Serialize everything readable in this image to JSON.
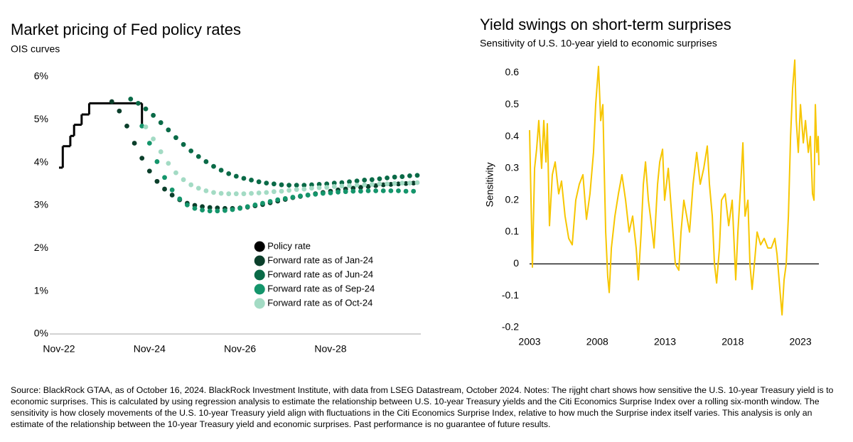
{
  "chart_data": [
    {
      "type": "line",
      "title": "Market pricing of Fed policy rates",
      "subtitle": "OIS curves",
      "xlim": [
        "2022-11",
        "2030-10"
      ],
      "xticks": [
        {
          "value": "2022-11",
          "label": "Nov-22"
        },
        {
          "value": "2024-11",
          "label": "Nov-24"
        },
        {
          "value": "2026-11",
          "label": "Nov-26"
        },
        {
          "value": "2028-11",
          "label": "Nov-28"
        }
      ],
      "ylim": [
        0,
        6
      ],
      "yticks": [
        {
          "value": 0,
          "label": "0%"
        },
        {
          "value": 1,
          "label": "1%"
        },
        {
          "value": 2,
          "label": "2%"
        },
        {
          "value": 3,
          "label": "3%"
        },
        {
          "value": 4,
          "label": "4%"
        },
        {
          "value": 5,
          "label": "5%"
        },
        {
          "value": 6,
          "label": "6%"
        }
      ],
      "legend": "lower right",
      "series": [
        {
          "name": "Policy rate",
          "color": "#000000",
          "style": "step",
          "x": [
            "2022-11",
            "2022-12",
            "2023-02",
            "2023-03",
            "2023-05",
            "2023-07",
            "2024-09"
          ],
          "values": [
            3.88,
            4.38,
            4.62,
            4.88,
            5.12,
            5.38,
            4.88
          ]
        },
        {
          "name": "Forward rate as of Jan-24",
          "color": "#0b3f2b",
          "style": "dots",
          "x": [
            "2024-01",
            "2024-03",
            "2024-05",
            "2024-07",
            "2024-09",
            "2024-11",
            "2025-01",
            "2025-03",
            "2025-05",
            "2025-07",
            "2025-09",
            "2025-11",
            "2026-01",
            "2026-03",
            "2026-05",
            "2026-07",
            "2026-09",
            "2026-11",
            "2027-01",
            "2027-03",
            "2027-05",
            "2027-07",
            "2027-09",
            "2027-11",
            "2028-01",
            "2028-03",
            "2028-05",
            "2028-07",
            "2028-09",
            "2028-11",
            "2029-01",
            "2029-03",
            "2029-05",
            "2029-07",
            "2029-09",
            "2029-11",
            "2030-01",
            "2030-03",
            "2030-05",
            "2030-07",
            "2030-09"
          ],
          "values": [
            5.42,
            5.2,
            4.85,
            4.45,
            4.1,
            3.8,
            3.56,
            3.38,
            3.24,
            3.13,
            3.05,
            3.0,
            2.97,
            2.95,
            2.94,
            2.93,
            2.93,
            2.94,
            2.96,
            2.99,
            3.02,
            3.06,
            3.1,
            3.14,
            3.18,
            3.21,
            3.24,
            3.27,
            3.3,
            3.33,
            3.36,
            3.38,
            3.4,
            3.42,
            3.44,
            3.46,
            3.48,
            3.49,
            3.5,
            3.51,
            3.52
          ]
        },
        {
          "name": "Forward rate as of Jun-24",
          "color": "#0a6a47",
          "style": "dots",
          "x": [
            "2024-06",
            "2024-08",
            "2024-10",
            "2024-12",
            "2025-02",
            "2025-04",
            "2025-06",
            "2025-08",
            "2025-10",
            "2025-12",
            "2026-02",
            "2026-04",
            "2026-06",
            "2026-08",
            "2026-10",
            "2026-12",
            "2027-02",
            "2027-04",
            "2027-06",
            "2027-08",
            "2027-10",
            "2027-12",
            "2028-02",
            "2028-04",
            "2028-06",
            "2028-08",
            "2028-10",
            "2028-12",
            "2029-02",
            "2029-04",
            "2029-06",
            "2029-08",
            "2029-10",
            "2029-12",
            "2030-02",
            "2030-04",
            "2030-06",
            "2030-08",
            "2030-10"
          ],
          "values": [
            5.48,
            5.38,
            5.25,
            5.1,
            4.93,
            4.76,
            4.58,
            4.42,
            4.27,
            4.14,
            4.02,
            3.91,
            3.82,
            3.74,
            3.68,
            3.63,
            3.59,
            3.55,
            3.52,
            3.5,
            3.48,
            3.47,
            3.47,
            3.47,
            3.48,
            3.49,
            3.5,
            3.52,
            3.53,
            3.55,
            3.57,
            3.59,
            3.6,
            3.62,
            3.64,
            3.66,
            3.67,
            3.69,
            3.7
          ]
        },
        {
          "name": "Forward rate as of Sep-24",
          "color": "#14956b",
          "style": "dots",
          "x": [
            "2024-09",
            "2024-11",
            "2025-01",
            "2025-03",
            "2025-05",
            "2025-07",
            "2025-09",
            "2025-11",
            "2026-01",
            "2026-03",
            "2026-05",
            "2026-07",
            "2026-09",
            "2026-11",
            "2027-01",
            "2027-03",
            "2027-05",
            "2027-07",
            "2027-09",
            "2027-11",
            "2028-01",
            "2028-03",
            "2028-05",
            "2028-07",
            "2028-09",
            "2028-11",
            "2029-01",
            "2029-03",
            "2029-05",
            "2029-07",
            "2029-09",
            "2029-11",
            "2030-01",
            "2030-03",
            "2030-05",
            "2030-07",
            "2030-09"
          ],
          "values": [
            4.85,
            4.45,
            4.02,
            3.65,
            3.36,
            3.15,
            3.01,
            2.93,
            2.89,
            2.87,
            2.87,
            2.88,
            2.9,
            2.93,
            2.97,
            3.01,
            3.05,
            3.09,
            3.13,
            3.16,
            3.19,
            3.22,
            3.24,
            3.26,
            3.28,
            3.29,
            3.31,
            3.32,
            3.33,
            3.33,
            3.34,
            3.34,
            3.34,
            3.34,
            3.34,
            3.33,
            3.33
          ]
        },
        {
          "name": "Forward rate as of Oct-24",
          "color": "#a3dbc4",
          "style": "dots",
          "x": [
            "2024-10",
            "2024-12",
            "2025-02",
            "2025-04",
            "2025-06",
            "2025-08",
            "2025-10",
            "2025-12",
            "2026-02",
            "2026-04",
            "2026-06",
            "2026-08",
            "2026-10",
            "2026-12",
            "2027-02",
            "2027-04",
            "2027-06",
            "2027-08",
            "2027-10",
            "2027-12",
            "2028-02",
            "2028-04",
            "2028-06",
            "2028-08",
            "2028-10",
            "2028-12",
            "2029-02",
            "2029-04",
            "2029-06",
            "2029-08",
            "2029-10",
            "2029-12",
            "2030-02",
            "2030-04",
            "2030-06",
            "2030-08",
            "2030-10"
          ],
          "values": [
            4.83,
            4.55,
            4.25,
            3.98,
            3.76,
            3.6,
            3.48,
            3.4,
            3.34,
            3.3,
            3.28,
            3.27,
            3.27,
            3.27,
            3.28,
            3.29,
            3.3,
            3.32,
            3.33,
            3.35,
            3.37,
            3.38,
            3.4,
            3.41,
            3.42,
            3.44,
            3.45,
            3.46,
            3.47,
            3.48,
            3.49,
            3.5,
            3.5,
            3.51,
            3.52,
            3.52,
            3.53
          ]
        }
      ]
    },
    {
      "type": "line",
      "title": "Yield swings on short-term surprises",
      "subtitle": "Sensitivity of U.S. 10-year yield to economic surprises",
      "ylabel": "Sensitivity",
      "color": "#f7c600",
      "zero_line": true,
      "xlim": [
        2003,
        2024.36
      ],
      "xticks": [
        2003,
        2008,
        2013,
        2018,
        2023
      ],
      "ylim": [
        -0.2,
        0.65
      ],
      "yticks": [
        -0.2,
        -0.1,
        0,
        0.1,
        0.2,
        0.3,
        0.4,
        0.5,
        0.6
      ],
      "x": [
        2003.0,
        2003.21,
        2003.37,
        2003.52,
        2003.68,
        2003.89,
        2004.05,
        2004.21,
        2004.31,
        2004.47,
        2004.68,
        2004.89,
        2005.15,
        2005.36,
        2005.62,
        2005.89,
        2006.15,
        2006.41,
        2006.67,
        2006.94,
        2007.2,
        2007.46,
        2007.72,
        2007.88,
        2008.09,
        2008.25,
        2008.41,
        2008.51,
        2008.62,
        2008.77,
        2008.88,
        2009.04,
        2009.3,
        2009.56,
        2009.82,
        2010.09,
        2010.35,
        2010.61,
        2010.87,
        2011.03,
        2011.24,
        2011.4,
        2011.56,
        2011.77,
        2011.92,
        2012.19,
        2012.45,
        2012.61,
        2012.82,
        2012.97,
        2013.24,
        2013.5,
        2013.76,
        2014.02,
        2014.18,
        2014.39,
        2014.6,
        2014.81,
        2015.07,
        2015.34,
        2015.6,
        2015.86,
        2016.12,
        2016.28,
        2016.49,
        2016.65,
        2016.81,
        2017.02,
        2017.17,
        2017.44,
        2017.7,
        2017.96,
        2018.22,
        2018.38,
        2018.59,
        2018.75,
        2018.91,
        2019.12,
        2019.27,
        2019.43,
        2019.64,
        2019.8,
        2020.06,
        2020.32,
        2020.59,
        2020.85,
        2021.11,
        2021.27,
        2021.48,
        2021.64,
        2021.79,
        2021.95,
        2022.11,
        2022.27,
        2022.42,
        2022.58,
        2022.69,
        2022.84,
        2023.0,
        2023.21,
        2023.37,
        2023.58,
        2023.73,
        2023.89,
        2024.0,
        2024.1,
        2024.21,
        2024.31,
        2024.36
      ],
      "values": [
        0.42,
        -0.01,
        0.3,
        0.36,
        0.45,
        0.3,
        0.45,
        0.32,
        0.44,
        0.12,
        0.28,
        0.32,
        0.22,
        0.26,
        0.15,
        0.08,
        0.06,
        0.2,
        0.25,
        0.28,
        0.14,
        0.22,
        0.35,
        0.5,
        0.62,
        0.45,
        0.5,
        0.3,
        0.1,
        -0.04,
        -0.09,
        0.05,
        0.15,
        0.22,
        0.28,
        0.2,
        0.1,
        0.15,
        0.05,
        -0.05,
        0.1,
        0.25,
        0.32,
        0.2,
        0.15,
        0.05,
        0.25,
        0.32,
        0.36,
        0.2,
        0.3,
        0.15,
        0.0,
        -0.02,
        0.1,
        0.2,
        0.15,
        0.1,
        0.25,
        0.35,
        0.25,
        0.3,
        0.37,
        0.25,
        0.15,
        0.0,
        -0.06,
        0.05,
        0.2,
        0.22,
        0.12,
        0.2,
        -0.05,
        0.1,
        0.25,
        0.38,
        0.15,
        0.2,
        0.0,
        -0.08,
        0.02,
        0.1,
        0.06,
        0.08,
        0.05,
        0.05,
        0.08,
        0.03,
        -0.08,
        -0.16,
        -0.05,
        0.0,
        0.15,
        0.4,
        0.55,
        0.64,
        0.45,
        0.35,
        0.5,
        0.38,
        0.45,
        0.35,
        0.4,
        0.22,
        0.2,
        0.5,
        0.35,
        0.4,
        0.31
      ]
    }
  ],
  "source_note": "Source: BlackRock GTAA, as of October 16, 2024. BlackRock Investment Institute, with data from LSEG Datastream, October 2024. Notes: The rijght chart shows how sensitive the U.S. 10-year Treasury yield is to economic surprises. This is calculated by using regression analysis to estimate the relationship between U.S. 10-year Treasury yields and the Citi Economics Surprise Index over a rolling six-month window. The sensitivity is how closely movements of the U.S. 10-year Treasury yield align with fluctuations in the Citi Economics Surprise Index, relative to how much the Surprise index itself varies. This analysis is only an estimate of the relationship between the 10-year Treasury yield and economic surprises. Past performance is no guarantee of future results."
}
